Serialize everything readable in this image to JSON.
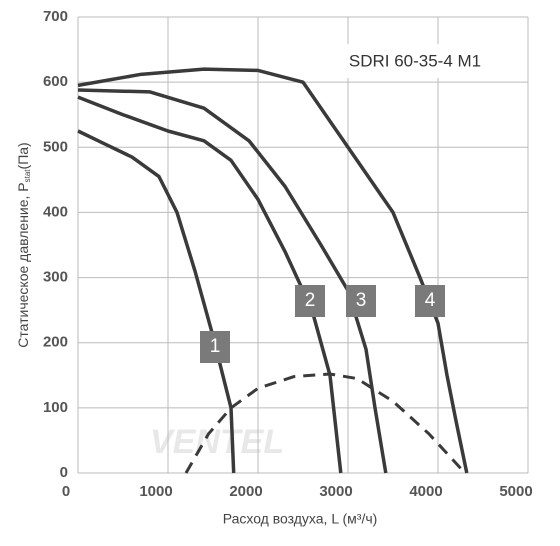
{
  "chart_data": {
    "type": "line",
    "title": "SDRI 60-35-4 M1",
    "watermark": "VENTEL",
    "ylabel": [
      "Статическое давление, P",
      "stat",
      "(Па)"
    ],
    "xlabel": "Расход воздуха, L (м³/ч)",
    "xlim": [
      0,
      5000
    ],
    "ylim": [
      0,
      700
    ],
    "xticks": [
      0,
      1000,
      2000,
      3000,
      4000,
      5000
    ],
    "yticks": [
      0,
      100,
      200,
      300,
      400,
      500,
      600,
      700
    ],
    "grid": true,
    "series": [
      {
        "name": "1",
        "color": "#3a3a3a",
        "x": [
          0,
          300,
          600,
          900,
          1100,
          1300,
          1500,
          1700,
          1730
        ],
        "values": [
          525,
          505,
          485,
          455,
          400,
          310,
          210,
          100,
          0
        ]
      },
      {
        "name": "2",
        "color": "#3a3a3a",
        "x": [
          0,
          500,
          1000,
          1400,
          1700,
          2000,
          2300,
          2600,
          2800,
          2920
        ],
        "values": [
          577,
          550,
          525,
          510,
          480,
          420,
          340,
          250,
          150,
          0
        ]
      },
      {
        "name": "3",
        "color": "#3a3a3a",
        "x": [
          0,
          800,
          1400,
          1900,
          2300,
          2700,
          3000,
          3200,
          3300,
          3420
        ],
        "values": [
          588,
          585,
          560,
          510,
          440,
          350,
          280,
          190,
          100,
          0
        ]
      },
      {
        "name": "4",
        "color": "#3a3a3a",
        "x": [
          0,
          700,
          1400,
          2000,
          2500,
          3000,
          3500,
          3800,
          4000,
          4100,
          4200,
          4320
        ],
        "values": [
          595,
          612,
          620,
          618,
          600,
          500,
          400,
          300,
          230,
          150,
          80,
          0
        ]
      }
    ],
    "dashed": {
      "color": "#3a3a3a",
      "x": [
        1200,
        1450,
        1700,
        2000,
        2400,
        2800,
        3100,
        3500,
        3900,
        4300
      ],
      "values": [
        0,
        60,
        100,
        130,
        148,
        152,
        145,
        110,
        60,
        0
      ]
    }
  }
}
